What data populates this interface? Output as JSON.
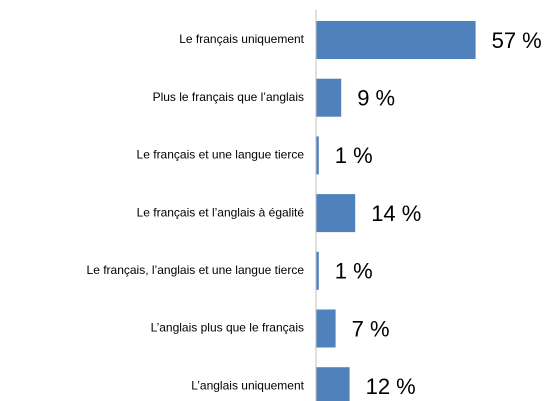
{
  "chart_data": {
    "type": "hbar",
    "categories": [
      "Le français uniquement",
      "Plus le français que l’anglais",
      "Le français et une langue tierce",
      "Le français et l’anglais à égalité",
      "Le français, l’anglais et une langue tierce",
      "L’anglais plus que le français",
      "L’anglais uniquement"
    ],
    "values": [
      57,
      9,
      1,
      14,
      1,
      7,
      12
    ],
    "value_labels": [
      "57 %",
      "9 %",
      "1 %",
      "14 %",
      "1 %",
      "7 %",
      "12 %"
    ],
    "color": "#4f81bd",
    "xlim": [
      0,
      100
    ]
  }
}
